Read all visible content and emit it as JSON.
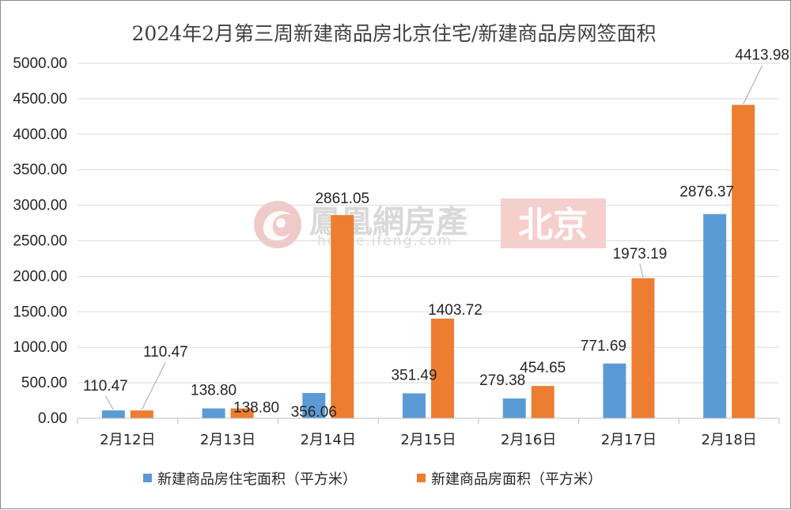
{
  "chart_data": {
    "type": "bar",
    "title": "2024年2月第三周新建商品房北京住宅/新建商品房网签面积",
    "categories": [
      "2月12日",
      "2月13日",
      "2月14日",
      "2月15日",
      "2月16日",
      "2月17日",
      "2月18日"
    ],
    "series": [
      {
        "name": "新建商品房住宅面积（平方米）",
        "color": "#5b9bd5",
        "values": [
          110.47,
          138.8,
          356.06,
          351.49,
          279.38,
          771.69,
          2876.37
        ],
        "labels": [
          "110.47",
          "138.80",
          "356.06",
          "351.49",
          "279.38",
          "771.69",
          "2876.37"
        ]
      },
      {
        "name": "新建商品房面积（平方米）",
        "color": "#ed7d31",
        "values": [
          110.47,
          138.8,
          2861.05,
          1403.72,
          454.65,
          1973.19,
          4413.98
        ],
        "labels": [
          "110.47",
          "138.80",
          "2861.05",
          "1403.72",
          "454.65",
          "1973.19",
          "4413.98"
        ]
      }
    ],
    "yticks": [
      "0.00",
      "500.00",
      "1000.00",
      "1500.00",
      "2000.00",
      "2500.00",
      "3000.00",
      "3500.00",
      "4000.00",
      "4500.00",
      "5000.00"
    ],
    "ylim": [
      0,
      5000
    ],
    "xlabel": "",
    "ylabel": "",
    "grid": "horizontal",
    "legend": "bottom"
  },
  "watermark": {
    "brand": "鳳凰網房產",
    "url": "house.ifeng.com",
    "city": "北京",
    "logo_icon": "phoenix-logo-icon",
    "badge_color": "#f4c7c3",
    "logo_color": "#e8b4b0"
  }
}
